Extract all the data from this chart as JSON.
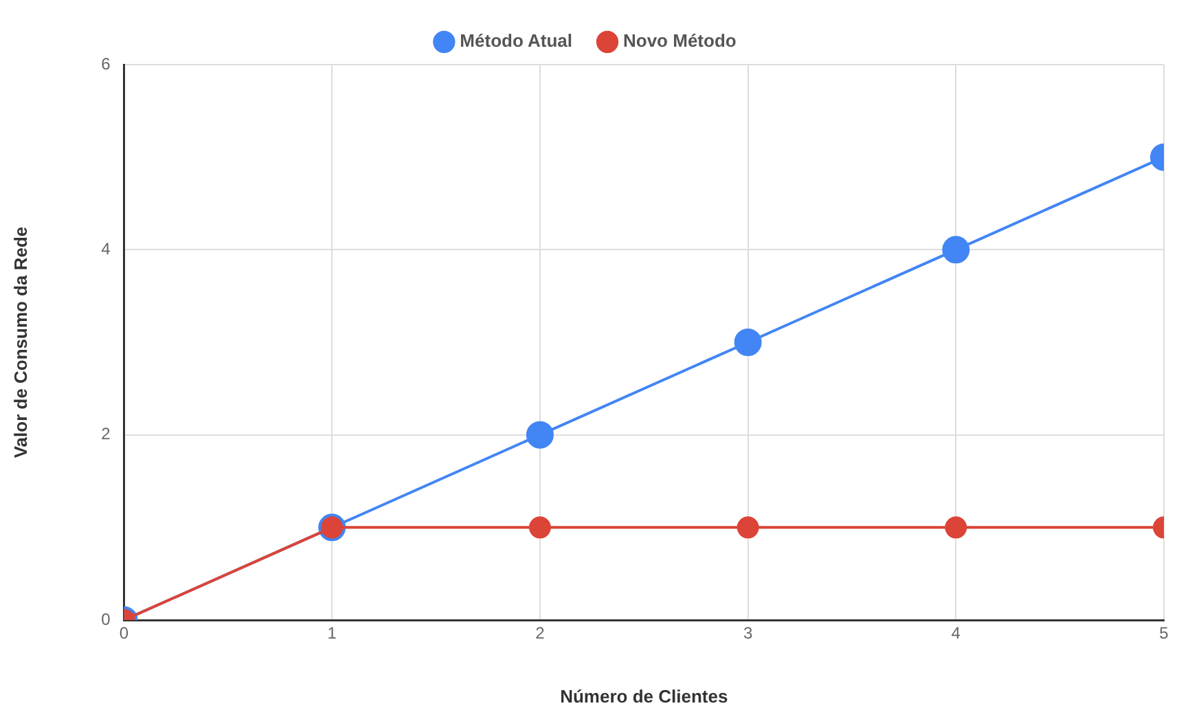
{
  "chart_data": {
    "type": "line",
    "xlabel": "Número de Clientes",
    "ylabel": "Valor de Consumo da Rede",
    "x": [
      0,
      1,
      2,
      3,
      4,
      5
    ],
    "series": [
      {
        "name": "Método Atual",
        "color": "#4285f4",
        "values": [
          0,
          1,
          2,
          3,
          4,
          5
        ]
      },
      {
        "name": "Novo Método",
        "color": "#db4437",
        "values": [
          0,
          1,
          1,
          1,
          1,
          1
        ]
      }
    ],
    "xlim": [
      0,
      5
    ],
    "xticks": [
      0,
      1,
      2,
      3,
      4,
      5
    ],
    "ylim": [
      0,
      6
    ],
    "yticks": [
      0,
      2,
      4,
      6
    ],
    "grid": true,
    "legend": "top",
    "marker": "circle",
    "line_style": "solid"
  }
}
